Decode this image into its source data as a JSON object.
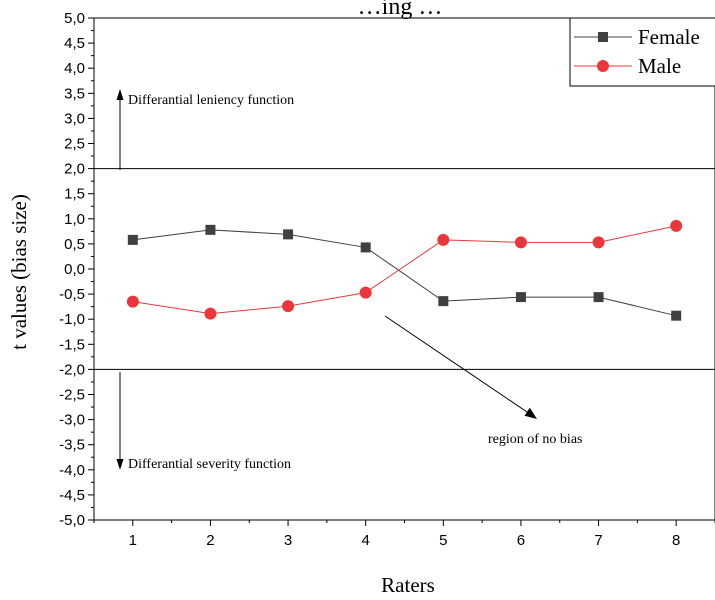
{
  "chart_data": {
    "type": "line",
    "title": "…ing …",
    "xlabel": "Raters",
    "ylabel": "t values (bias size)",
    "categories": [
      "1",
      "2",
      "3",
      "4",
      "5",
      "6",
      "7",
      "8"
    ],
    "x": [
      1,
      2,
      3,
      4,
      5,
      6,
      7,
      8
    ],
    "xlim": [
      0.5,
      8.5
    ],
    "ylim": [
      -5.0,
      5.0
    ],
    "yticks": [
      "5,0",
      "4,5",
      "4,0",
      "3,5",
      "3,0",
      "2,5",
      "2,0",
      "1,5",
      "1,0",
      "0,5",
      "0,0",
      "-0,5",
      "-1,0",
      "-1,5",
      "-2,0",
      "-2,5",
      "-3,0",
      "-3,5",
      "-4,0",
      "-4,5",
      "-5,0"
    ],
    "grid": false,
    "legend_position": "top-right",
    "series": [
      {
        "name": "Female",
        "marker": "square",
        "color": "#404040",
        "values": [
          0.58,
          0.78,
          0.69,
          0.43,
          -0.64,
          -0.56,
          -0.56,
          -0.93
        ]
      },
      {
        "name": "Male",
        "marker": "circle",
        "color": "#e8383d",
        "values": [
          -0.65,
          -0.89,
          -0.74,
          -0.47,
          0.58,
          0.53,
          0.53,
          0.86
        ]
      }
    ],
    "reference_lines": [
      2.0,
      -2.0
    ],
    "annotations": {
      "leniency": "Differantial leniency function",
      "severity": "Differantial severity function",
      "no_bias": "region of no bias"
    }
  }
}
